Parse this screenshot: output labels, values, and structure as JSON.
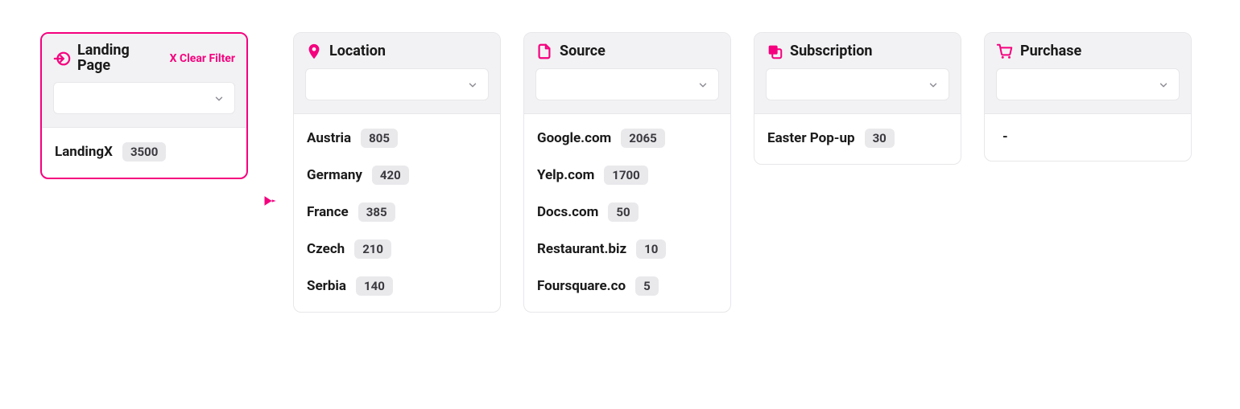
{
  "accent_color": "#f5007e",
  "clear_filter_label": "X Clear Filter",
  "empty_marker": "-",
  "cards": [
    {
      "id": "landing_page",
      "title": "Landing Page",
      "icon": "enter-icon",
      "selected": true,
      "show_clear": true,
      "items": [
        {
          "label": "LandingX",
          "count": "3500"
        }
      ]
    },
    {
      "id": "location",
      "title": "Location",
      "icon": "location-pin-icon",
      "selected": false,
      "show_clear": false,
      "items": [
        {
          "label": "Austria",
          "count": "805"
        },
        {
          "label": "Germany",
          "count": "420"
        },
        {
          "label": "France",
          "count": "385"
        },
        {
          "label": "Czech",
          "count": "210"
        },
        {
          "label": "Serbia",
          "count": "140"
        }
      ]
    },
    {
      "id": "source",
      "title": "Source",
      "icon": "file-icon",
      "selected": false,
      "show_clear": false,
      "items": [
        {
          "label": "Google.com",
          "count": "2065"
        },
        {
          "label": "Yelp.com",
          "count": "1700"
        },
        {
          "label": "Docs.com",
          "count": "50"
        },
        {
          "label": "Restaurant.biz",
          "count": "10"
        },
        {
          "label": "Foursquare.co",
          "count": "5"
        }
      ]
    },
    {
      "id": "subscription",
      "title": "Subscription",
      "icon": "copy-icon",
      "selected": false,
      "show_clear": false,
      "items": [
        {
          "label": "Easter Pop-up",
          "count": "30"
        }
      ]
    },
    {
      "id": "purchase",
      "title": "Purchase",
      "icon": "cart-icon",
      "selected": false,
      "show_clear": false,
      "items": []
    }
  ]
}
